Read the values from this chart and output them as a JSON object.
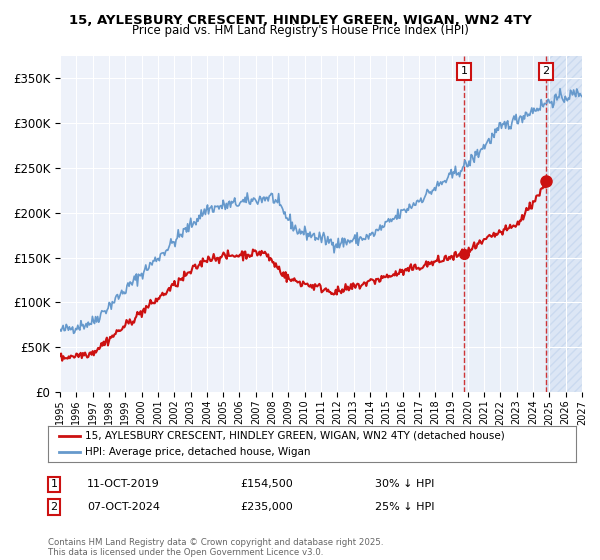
{
  "title": "15, AYLESBURY CRESCENT, HINDLEY GREEN, WIGAN, WN2 4TY",
  "subtitle": "Price paid vs. HM Land Registry's House Price Index (HPI)",
  "legend_line1": "15, AYLESBURY CRESCENT, HINDLEY GREEN, WIGAN, WN2 4TY (detached house)",
  "legend_line2": "HPI: Average price, detached house, Wigan",
  "annotation1_date": "11-OCT-2019",
  "annotation1_price": "£154,500",
  "annotation1_hpi": "30% ↓ HPI",
  "annotation2_date": "07-OCT-2024",
  "annotation2_price": "£235,000",
  "annotation2_hpi": "25% ↓ HPI",
  "footer": "Contains HM Land Registry data © Crown copyright and database right 2025.\nThis data is licensed under the Open Government Licence v3.0.",
  "ylim": [
    0,
    375000
  ],
  "yticks": [
    0,
    50000,
    100000,
    150000,
    200000,
    250000,
    300000,
    350000
  ],
  "red_color": "#cc1111",
  "blue_color": "#6699cc",
  "dashed_color": "#cc2222",
  "bg_plot": "#eef2fa",
  "bg_hatch_color": "#d8e8f5",
  "purchase1_year": 2019.78,
  "purchase1_price": 154500,
  "purchase2_year": 2024.77,
  "purchase2_price": 235000,
  "xmin": 1995,
  "xmax": 2027
}
